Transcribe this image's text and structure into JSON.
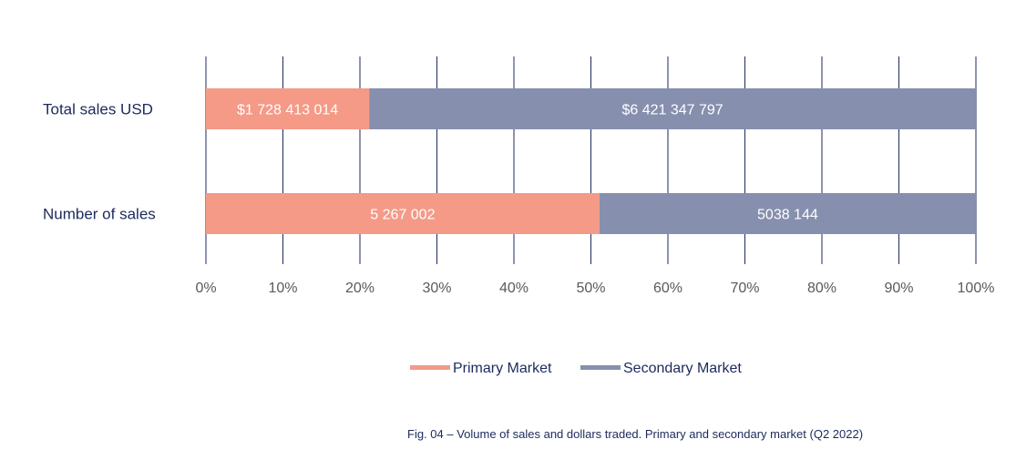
{
  "chart_data": {
    "type": "bar",
    "orientation": "horizontal",
    "stacked": true,
    "normalized_percent": true,
    "categories": [
      "Total sales  USD",
      "Number of sales"
    ],
    "series": [
      {
        "name": "Primary Market",
        "color": "#f49a87",
        "values": [
          21.2,
          51.1
        ],
        "labels": [
          "$1 728 413 014",
          "5 267 002"
        ]
      },
      {
        "name": "Secondary Market",
        "color": "#878fae",
        "values": [
          78.8,
          48.9
        ],
        "labels": [
          "$6 421 347 797",
          "5038 144"
        ]
      }
    ],
    "xlim": [
      0,
      100
    ],
    "xticks": [
      "0%",
      "10%",
      "20%",
      "30%",
      "40%",
      "50%",
      "60%",
      "70%",
      "80%",
      "90%",
      "100%"
    ],
    "grid": "vertical",
    "legend_position": "bottom",
    "caption": "Fig. 04 – Volume of sales and dollars traded. Primary and secondary market (Q2 2022)"
  }
}
